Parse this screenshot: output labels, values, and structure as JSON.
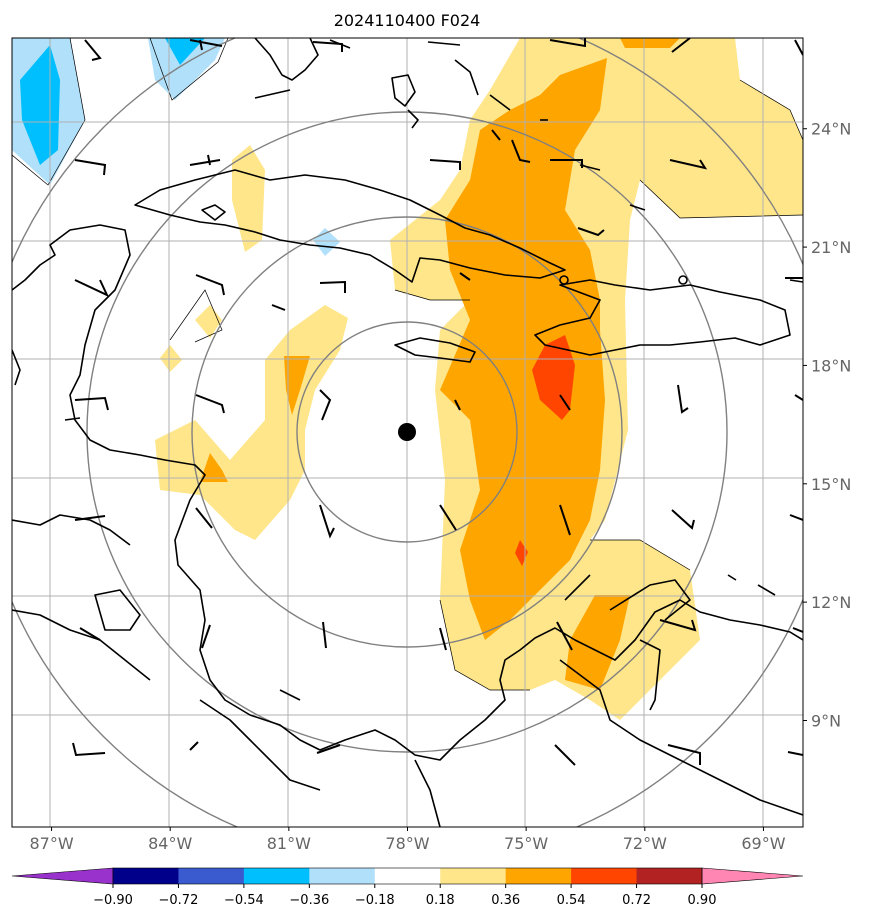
{
  "title": "2024110400 F024",
  "lon_ticks": [
    {
      "deg": -87,
      "label": "87°W"
    },
    {
      "deg": -84,
      "label": "84°W"
    },
    {
      "deg": -81,
      "label": "81°W"
    },
    {
      "deg": -78,
      "label": "78°W"
    },
    {
      "deg": -75,
      "label": "75°W"
    },
    {
      "deg": -72,
      "label": "72°W"
    },
    {
      "deg": -69,
      "label": "69°W"
    }
  ],
  "lat_ticks": [
    {
      "deg": 24,
      "label": "24°N"
    },
    {
      "deg": 21,
      "label": "21°N"
    },
    {
      "deg": 18,
      "label": "18°N"
    },
    {
      "deg": 15,
      "label": "15°N"
    },
    {
      "deg": 12,
      "label": "12°N"
    },
    {
      "deg": 9,
      "label": "9°N"
    }
  ],
  "map_extent": {
    "lon": [
      -88,
      -68
    ],
    "lat": [
      6.3,
      26.3
    ]
  },
  "storm_center": {
    "lon": -78.0,
    "lat": 16.2
  },
  "colorbar": {
    "levels": [
      "-0.90",
      "-0.72",
      "-0.54",
      "-0.36",
      "-0.18",
      "0.18",
      "0.36",
      "0.54",
      "0.72",
      "0.90"
    ],
    "colors": [
      "#9932cc",
      "#00008b",
      "#3a5bd0",
      "#00bfff",
      "#b0e0fa",
      "#ffffff",
      "#ffe68a",
      "#ffa500",
      "#ff4500",
      "#b22222",
      "#ff85b3"
    ],
    "extend": "both"
  },
  "colors": {
    "light_yellow": "#ffe68a",
    "orange": "#ffa500",
    "red_orange": "#ff4500",
    "light_blue": "#b0e0fa",
    "blue": "#00bfff",
    "coast": "#000000",
    "grid": "#b0b0b0",
    "range_ring": "#808080"
  }
}
